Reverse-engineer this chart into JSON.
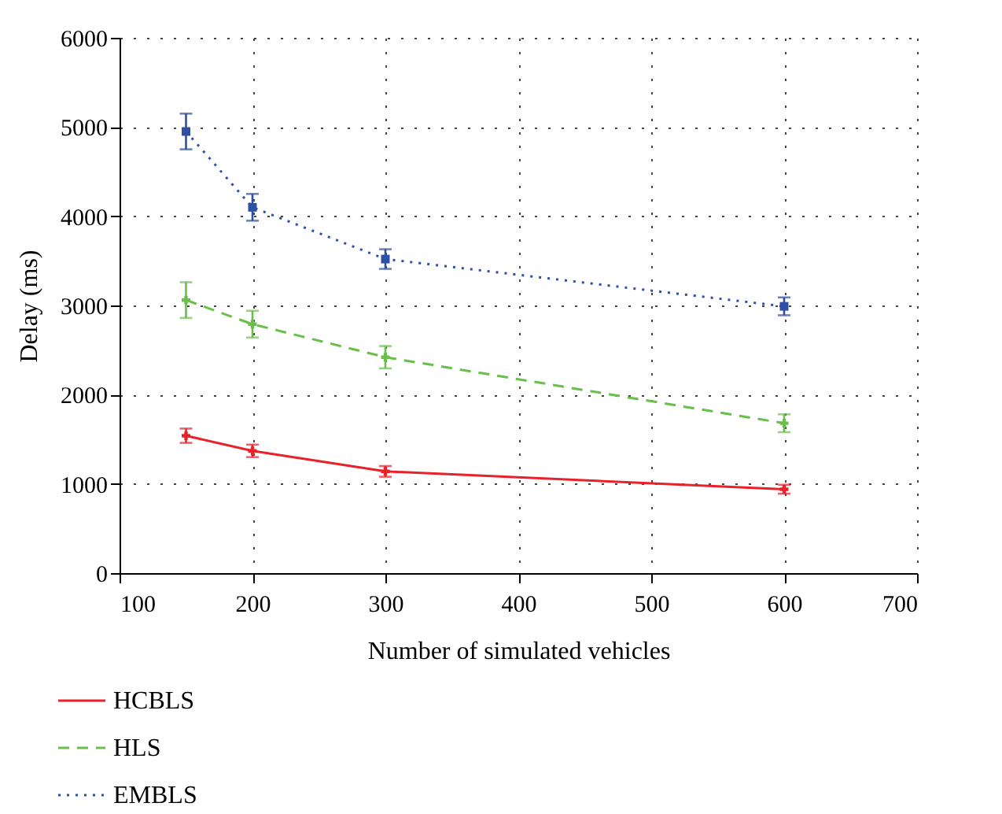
{
  "chart_data": {
    "type": "line",
    "xlabel": "Number of simulated vehicles",
    "ylabel": "Delay (ms)",
    "x": [
      150,
      200,
      300,
      600
    ],
    "series": [
      {
        "name": "HCBLS",
        "color": "#e8212a",
        "values": [
          1540,
          1370,
          1140,
          940
        ],
        "errors": [
          80,
          70,
          60,
          50
        ],
        "marker": "cross",
        "line_style": "solid"
      },
      {
        "name": "HLS",
        "color": "#6abf4b",
        "values": [
          3060,
          2790,
          2420,
          1680
        ],
        "errors": [
          200,
          150,
          125,
          100
        ],
        "marker": "cross",
        "line_style": "dashed"
      },
      {
        "name": "EMBLS",
        "color": "#2e4fa3",
        "values": [
          4950,
          4100,
          3520,
          2990
        ],
        "errors": [
          200,
          150,
          110,
          100
        ],
        "marker": "square",
        "line_style": "dotted"
      }
    ],
    "xlim": [
      100,
      700
    ],
    "xticks": [
      100,
      200,
      300,
      400,
      500,
      600,
      700
    ],
    "ylim": [
      0,
      6000
    ],
    "yticks": [
      0,
      1000,
      2000,
      3000,
      4000,
      5000,
      6000
    ],
    "grid": true,
    "legend": "bottom left"
  }
}
